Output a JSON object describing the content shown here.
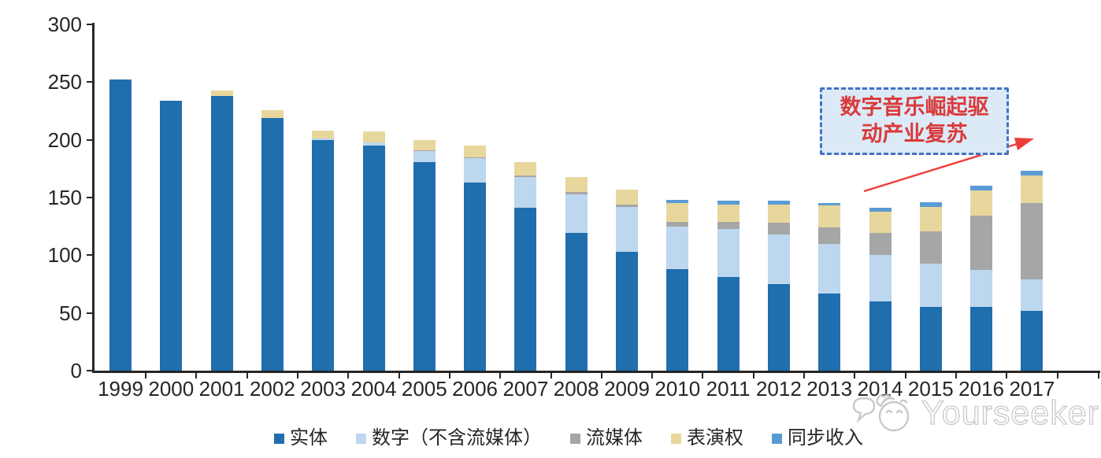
{
  "chart_data": {
    "type": "bar",
    "stacked": true,
    "title": "",
    "xlabel": "",
    "ylabel": "",
    "categories": [
      "1999",
      "2000",
      "2001",
      "2002",
      "2003",
      "2004",
      "2005",
      "2006",
      "2007",
      "2008",
      "2009",
      "2010",
      "2011",
      "2012",
      "2013",
      "2014",
      "2015",
      "2016",
      "2017"
    ],
    "series": [
      {
        "name": "实体",
        "color": "#1f6eae",
        "values": [
          252,
          234,
          238,
          219,
          200,
          195,
          181,
          163,
          141,
          119,
          103,
          88,
          81,
          75,
          67,
          60,
          55,
          55,
          52
        ]
      },
      {
        "name": "数字（不含流媒体）",
        "color": "#bdd7ee",
        "values": [
          0,
          0,
          0,
          0,
          1,
          3,
          9,
          21,
          27,
          34,
          39,
          37,
          42,
          43,
          43,
          40,
          38,
          32,
          27
        ]
      },
      {
        "name": "流媒体",
        "color": "#a6a6a6",
        "values": [
          0,
          0,
          0,
          0,
          0,
          0,
          1,
          1,
          1,
          2,
          2,
          4,
          6,
          10,
          14,
          19,
          28,
          47,
          66
        ]
      },
      {
        "name": "表演权",
        "color": "#e7d79c",
        "values": [
          0,
          0,
          5,
          7,
          7,
          9,
          9,
          10,
          12,
          13,
          13,
          16,
          15,
          16,
          19,
          19,
          21,
          22,
          24
        ]
      },
      {
        "name": "同步收入",
        "color": "#5b9bd5",
        "values": [
          0,
          0,
          0,
          0,
          0,
          0,
          0,
          0,
          0,
          0,
          0,
          3,
          3,
          3,
          2,
          3,
          4,
          4,
          4
        ]
      }
    ],
    "ylim": [
      0,
      300
    ],
    "yticks": [
      0,
      50,
      100,
      150,
      200,
      250,
      300
    ],
    "grid": false,
    "legend_position": "bottom",
    "axis_color": "#262626"
  },
  "annotation": {
    "text": "数字音乐崛起驱动产业复苏",
    "lines": [
      "数字音乐崛起驱",
      "动产业复苏"
    ],
    "text_color": "#d93a3a",
    "border_color": "#4472c4",
    "fill_color": "#dce9f7",
    "arrow_color": "#ee3d38"
  },
  "watermark": {
    "text": "Yourseeker",
    "logo_icon": "chat-cat-icon"
  }
}
